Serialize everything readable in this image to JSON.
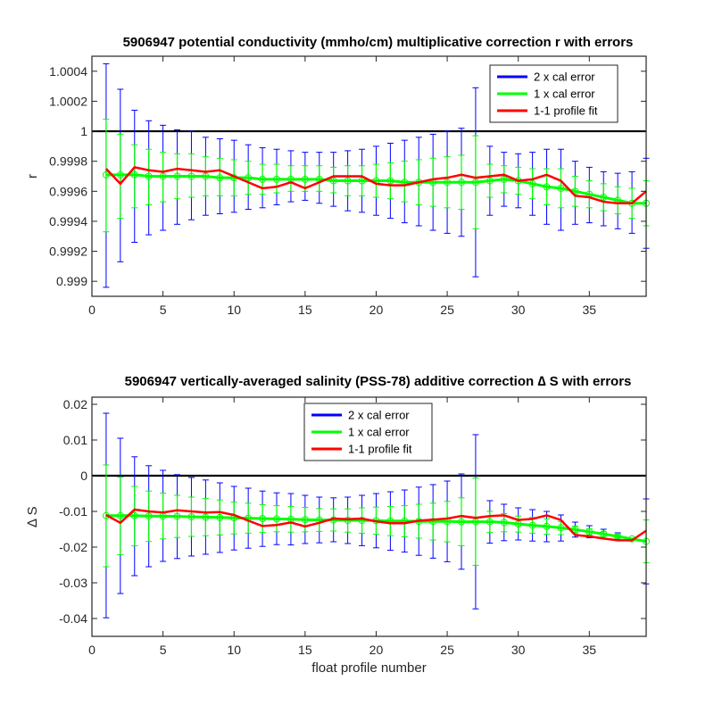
{
  "chart_data": [
    {
      "type": "line",
      "title": "5906947 potential conductivity (mmho/cm) multiplicative correction r with errors",
      "xlabel": "",
      "ylabel": "r",
      "xlim": [
        0,
        39
      ],
      "ylim": [
        0.9989,
        1.0005
      ],
      "xticks": [
        "0",
        "5",
        "10",
        "15",
        "20",
        "25",
        "30",
        "35"
      ],
      "yticks": [
        "0.999",
        "0.9992",
        "0.9994",
        "0.9996",
        "0.9998",
        "1",
        "1.0002",
        "1.0004"
      ],
      "ytick_values": [
        0.999,
        0.9992,
        0.9994,
        0.9996,
        0.9998,
        1.0,
        1.0002,
        1.0004
      ],
      "reference_line": 1.0,
      "legend_position": "top-right",
      "x": [
        1,
        2,
        3,
        4,
        5,
        6,
        7,
        8,
        9,
        10,
        11,
        12,
        13,
        14,
        15,
        16,
        17,
        18,
        19,
        20,
        21,
        22,
        23,
        24,
        25,
        26,
        27,
        28,
        29,
        30,
        31,
        32,
        33,
        34,
        35,
        36,
        37,
        38,
        39
      ],
      "series": [
        {
          "name": "2 x cal error",
          "color": "#0000ff",
          "center": [
            0.99971,
            0.99971,
            0.99971,
            0.9997,
            0.9997,
            0.9997,
            0.9997,
            0.9997,
            0.99969,
            0.99969,
            0.99969,
            0.99968,
            0.99968,
            0.99968,
            0.99968,
            0.99968,
            0.99967,
            0.99967,
            0.99967,
            0.99967,
            0.99967,
            0.99966,
            0.99966,
            0.99966,
            0.99966,
            0.99966,
            0.99966,
            0.99967,
            0.99968,
            0.99967,
            0.99965,
            0.99963,
            0.99962,
            0.9996,
            0.99958,
            0.99956,
            0.99954,
            0.99952,
            0.99952
          ],
          "upper": [
            1.00045,
            1.00028,
            1.00014,
            1.00007,
            1.00004,
            1.00001,
            1.0,
            0.99996,
            0.99995,
            0.99994,
            0.99991,
            0.99989,
            0.99988,
            0.99987,
            0.99986,
            0.99986,
            0.99986,
            0.99987,
            0.99988,
            0.9999,
            0.99992,
            0.99994,
            0.99996,
            0.99998,
            1.0,
            1.00002,
            1.00029,
            0.9999,
            0.99986,
            0.99985,
            0.99986,
            0.99988,
            0.99988,
            0.9998,
            0.99976,
            0.99973,
            0.99972,
            0.99973,
            0.99982
          ],
          "lower": [
            0.99896,
            0.99913,
            0.99926,
            0.99931,
            0.99934,
            0.99938,
            0.99941,
            0.99944,
            0.99945,
            0.99946,
            0.99948,
            0.99949,
            0.99951,
            0.99953,
            0.99954,
            0.99952,
            0.9995,
            0.99947,
            0.99946,
            0.99944,
            0.99942,
            0.99939,
            0.99937,
            0.99934,
            0.99932,
            0.9993,
            0.99903,
            0.99944,
            0.9995,
            0.99949,
            0.99944,
            0.99938,
            0.99934,
            0.99938,
            0.99939,
            0.99937,
            0.99935,
            0.99932,
            0.99922
          ]
        },
        {
          "name": "1 x cal error",
          "color": "#00ff00",
          "center": [
            0.99971,
            0.99971,
            0.99971,
            0.9997,
            0.9997,
            0.9997,
            0.9997,
            0.9997,
            0.99969,
            0.99969,
            0.99969,
            0.99968,
            0.99968,
            0.99968,
            0.99968,
            0.99968,
            0.99967,
            0.99967,
            0.99967,
            0.99967,
            0.99967,
            0.99966,
            0.99966,
            0.99966,
            0.99966,
            0.99966,
            0.99966,
            0.99967,
            0.99968,
            0.99967,
            0.99965,
            0.99963,
            0.99962,
            0.9996,
            0.99958,
            0.99956,
            0.99954,
            0.99952,
            0.99952
          ],
          "upper": [
            1.00008,
            0.99998,
            0.99991,
            0.99988,
            0.99986,
            0.99985,
            0.99985,
            0.99983,
            0.99982,
            0.99981,
            0.9998,
            0.99978,
            0.99978,
            0.99977,
            0.99977,
            0.99977,
            0.99976,
            0.99977,
            0.99977,
            0.99978,
            0.99979,
            0.9998,
            0.99981,
            0.99982,
            0.99983,
            0.99984,
            0.99997,
            0.99978,
            0.99977,
            0.99976,
            0.99975,
            0.99975,
            0.99975,
            0.9997,
            0.99967,
            0.99965,
            0.99963,
            0.99962,
            0.99967
          ],
          "lower": [
            0.99933,
            0.99942,
            0.99949,
            0.99951,
            0.99953,
            0.99955,
            0.99956,
            0.99957,
            0.99957,
            0.99957,
            0.99958,
            0.99958,
            0.99959,
            0.9996,
            0.9996,
            0.9996,
            0.99959,
            0.99957,
            0.99957,
            0.99956,
            0.99955,
            0.99953,
            0.99951,
            0.9995,
            0.99949,
            0.99948,
            0.99935,
            0.99956,
            0.99959,
            0.99958,
            0.99955,
            0.99951,
            0.99949,
            0.9995,
            0.99949,
            0.99947,
            0.99945,
            0.99942,
            0.99937
          ]
        },
        {
          "name": "1-1 profile fit",
          "color": "#ff0000",
          "values": [
            0.99975,
            0.99965,
            0.99976,
            0.99974,
            0.99973,
            0.99975,
            0.99974,
            0.99973,
            0.99974,
            0.9997,
            0.99966,
            0.99962,
            0.99963,
            0.99966,
            0.99962,
            0.99966,
            0.9997,
            0.9997,
            0.9997,
            0.99965,
            0.99964,
            0.99964,
            0.99966,
            0.99968,
            0.99969,
            0.99971,
            0.99969,
            0.9997,
            0.99971,
            0.99967,
            0.99968,
            0.99971,
            0.99967,
            0.99957,
            0.99956,
            0.99953,
            0.99952,
            0.99952,
            0.9996
          ]
        }
      ]
    },
    {
      "type": "line",
      "title": "5906947 vertically-averaged salinity (PSS-78) additive correction ∆ S with errors",
      "xlabel": "float profile number",
      "ylabel": "∆ S",
      "xlim": [
        0,
        39
      ],
      "ylim": [
        -0.045,
        0.022
      ],
      "xticks": [
        "0",
        "5",
        "10",
        "15",
        "20",
        "25",
        "30",
        "35"
      ],
      "yticks": [
        "-0.04",
        "-0.03",
        "-0.02",
        "-0.01",
        "0",
        "0.01",
        "0.02"
      ],
      "ytick_values": [
        -0.04,
        -0.03,
        -0.02,
        -0.01,
        0.0,
        0.01,
        0.02
      ],
      "reference_line": 0.0,
      "legend_position": "top-center",
      "x": [
        1,
        2,
        3,
        4,
        5,
        6,
        7,
        8,
        9,
        10,
        11,
        12,
        13,
        14,
        15,
        16,
        17,
        18,
        19,
        20,
        21,
        22,
        23,
        24,
        25,
        26,
        27,
        28,
        29,
        30,
        31,
        32,
        33,
        34,
        35,
        36,
        37,
        38,
        39
      ],
      "series": [
        {
          "name": "2 x cal error",
          "color": "#0000ff",
          "center": [
            -0.0112,
            -0.0112,
            -0.0112,
            -0.0113,
            -0.0113,
            -0.0114,
            -0.0115,
            -0.0116,
            -0.0117,
            -0.0118,
            -0.0119,
            -0.012,
            -0.0121,
            -0.0122,
            -0.0123,
            -0.0124,
            -0.0124,
            -0.0125,
            -0.0125,
            -0.0126,
            -0.0127,
            -0.0127,
            -0.0128,
            -0.0128,
            -0.0128,
            -0.0129,
            -0.0129,
            -0.0129,
            -0.0131,
            -0.0135,
            -0.0139,
            -0.0142,
            -0.0146,
            -0.0151,
            -0.0157,
            -0.0163,
            -0.017,
            -0.0177,
            -0.0184
          ],
          "upper": [
            0.0175,
            0.0105,
            0.0053,
            0.0028,
            0.0015,
            0.0003,
            -0.0005,
            -0.0012,
            -0.002,
            -0.003,
            -0.0035,
            -0.0043,
            -0.0048,
            -0.005,
            -0.0055,
            -0.006,
            -0.0062,
            -0.006,
            -0.0055,
            -0.005,
            -0.0045,
            -0.004,
            -0.0032,
            -0.0025,
            -0.0015,
            0.0005,
            0.0115,
            -0.007,
            -0.008,
            -0.009,
            -0.0095,
            -0.01,
            -0.011,
            -0.013,
            -0.014,
            -0.015,
            -0.016,
            -0.0175,
            -0.0065
          ],
          "lower": [
            -0.0398,
            -0.033,
            -0.028,
            -0.0255,
            -0.024,
            -0.0232,
            -0.0225,
            -0.022,
            -0.0215,
            -0.0208,
            -0.0203,
            -0.0198,
            -0.0193,
            -0.0194,
            -0.019,
            -0.0188,
            -0.0185,
            -0.019,
            -0.0196,
            -0.0202,
            -0.0209,
            -0.0214,
            -0.0223,
            -0.0231,
            -0.0241,
            -0.0262,
            -0.0373,
            -0.0189,
            -0.0182,
            -0.018,
            -0.0183,
            -0.0185,
            -0.0183,
            -0.0172,
            -0.0174,
            -0.0176,
            -0.018,
            -0.018,
            -0.0303
          ]
        },
        {
          "name": "1 x cal error",
          "color": "#00ff00",
          "center": [
            -0.0112,
            -0.0112,
            -0.0112,
            -0.0113,
            -0.0113,
            -0.0114,
            -0.0115,
            -0.0116,
            -0.0117,
            -0.0118,
            -0.0119,
            -0.012,
            -0.0121,
            -0.0122,
            -0.0123,
            -0.0124,
            -0.0124,
            -0.0125,
            -0.0125,
            -0.0126,
            -0.0127,
            -0.0127,
            -0.0128,
            -0.0128,
            -0.0128,
            -0.0129,
            -0.0129,
            -0.0129,
            -0.0131,
            -0.0135,
            -0.0139,
            -0.0142,
            -0.0146,
            -0.0151,
            -0.0157,
            -0.0163,
            -0.017,
            -0.0177,
            -0.0184
          ],
          "upper": [
            0.003,
            -0.0004,
            -0.003,
            -0.0043,
            -0.0049,
            -0.0055,
            -0.006,
            -0.0064,
            -0.0068,
            -0.0074,
            -0.0077,
            -0.0081,
            -0.0084,
            -0.0086,
            -0.0089,
            -0.0092,
            -0.0093,
            -0.0093,
            -0.009,
            -0.0088,
            -0.0086,
            -0.0084,
            -0.008,
            -0.0077,
            -0.0072,
            -0.0062,
            -0.0007,
            -0.01,
            -0.0106,
            -0.0113,
            -0.0117,
            -0.0121,
            -0.0128,
            -0.0141,
            -0.0149,
            -0.0157,
            -0.0165,
            -0.0176,
            -0.0124
          ],
          "lower": [
            -0.0255,
            -0.0221,
            -0.0196,
            -0.0184,
            -0.0177,
            -0.0173,
            -0.017,
            -0.0168,
            -0.0166,
            -0.0163,
            -0.0161,
            -0.0159,
            -0.0157,
            -0.0158,
            -0.0157,
            -0.0156,
            -0.0155,
            -0.0158,
            -0.0161,
            -0.0164,
            -0.0168,
            -0.0171,
            -0.0175,
            -0.018,
            -0.0185,
            -0.0196,
            -0.0251,
            -0.0159,
            -0.0157,
            -0.0158,
            -0.0161,
            -0.0164,
            -0.0165,
            -0.0162,
            -0.0166,
            -0.017,
            -0.0175,
            -0.0179,
            -0.0244
          ]
        },
        {
          "name": "1-1 profile fit",
          "color": "#ff0000",
          "values": [
            -0.011,
            -0.0132,
            -0.0095,
            -0.01,
            -0.0103,
            -0.0097,
            -0.01,
            -0.0103,
            -0.0102,
            -0.011,
            -0.0126,
            -0.0141,
            -0.0138,
            -0.0131,
            -0.0142,
            -0.0132,
            -0.012,
            -0.0122,
            -0.012,
            -0.0128,
            -0.0133,
            -0.0133,
            -0.0126,
            -0.0123,
            -0.012,
            -0.0113,
            -0.0118,
            -0.0113,
            -0.0111,
            -0.0124,
            -0.0121,
            -0.0111,
            -0.0124,
            -0.0166,
            -0.017,
            -0.0176,
            -0.0181,
            -0.0181,
            -0.0154
          ]
        }
      ]
    }
  ]
}
